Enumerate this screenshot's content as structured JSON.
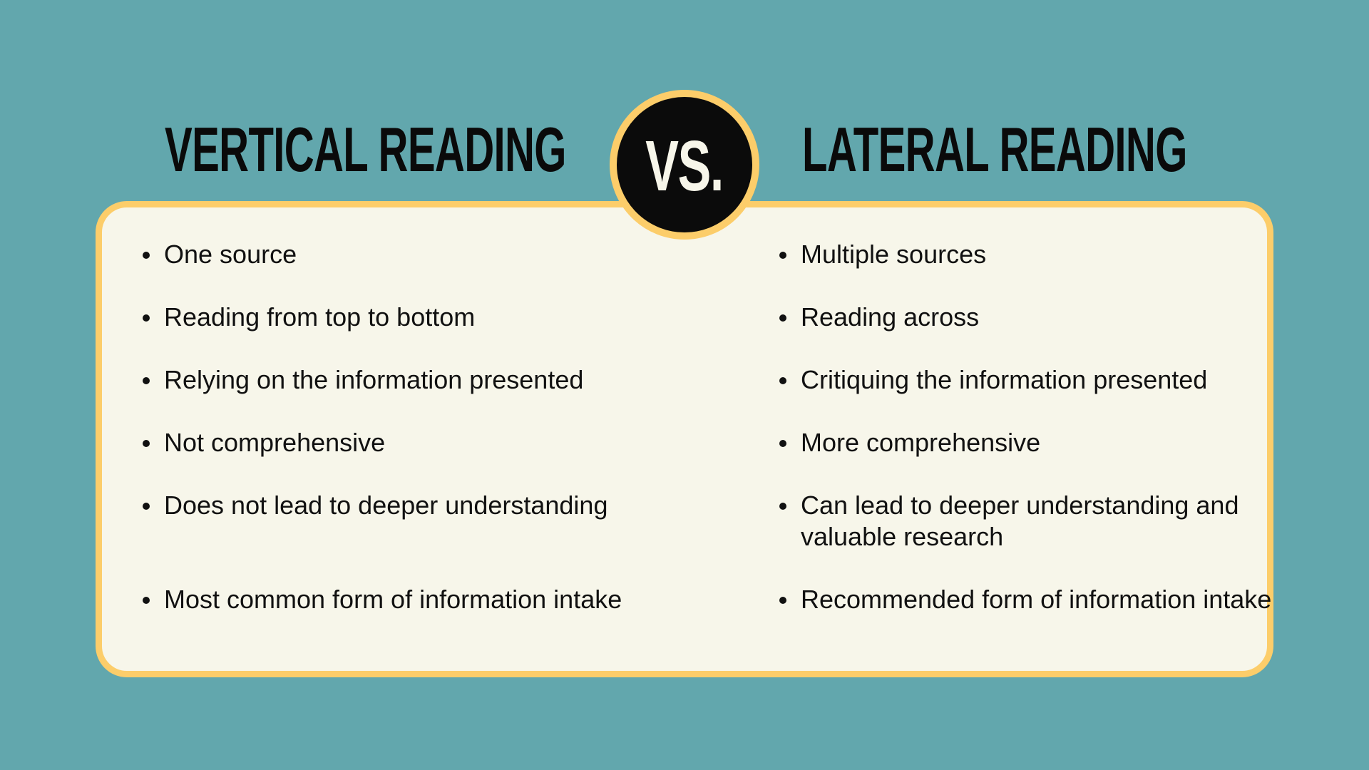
{
  "left": {
    "title": "VERTICAL READING",
    "items": [
      "One source",
      "Reading from top to bottom",
      "Relying on the information presented",
      "Not comprehensive",
      "Does not lead to deeper understanding",
      "Most common form of information intake"
    ]
  },
  "vs_label": "VS.",
  "right": {
    "title": "LATERAL READING",
    "items": [
      "Multiple sources",
      "Reading across",
      "Critiquing the information presented",
      "More comprehensive",
      "Can lead to deeper understanding and valuable research",
      "Recommended form of information intake"
    ]
  },
  "colors": {
    "background": "#62a7ad",
    "card": "#f7f6ea",
    "accent": "#fccd6a",
    "badge": "#0b0b0b"
  }
}
